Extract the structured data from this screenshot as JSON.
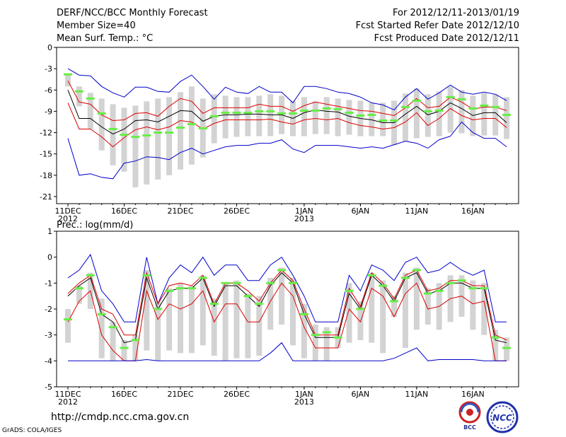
{
  "header": {
    "title": "DERF/NCC/BCC Monthly Forecast",
    "member_size": "Member Size=40",
    "variable": "Mean Surf. Temp.: °C",
    "period": "For 2012/12/11-2013/01/19",
    "fcst_started": "Fcst Started Refer Date 2012/12/10",
    "fcst_produced": "Fcst Produced Date 2012/12/11"
  },
  "footer": {
    "url": "http://cmdp.ncc.cma.gov.cn",
    "credit": "GrADS: COLA/IGES",
    "logo_bcc": "BCC",
    "logo_ncc": "NCC"
  },
  "colors": {
    "band_bar": "#d3d3d3",
    "median_marker": "#66ee44",
    "mean_line": "#000000",
    "inner_line": "#dd0000",
    "outer_line": "#0000cc"
  },
  "chart_data": [
    {
      "type": "line",
      "title": "Mean Surf. Temp.: °C",
      "ylabel": "°C",
      "ylim": [
        -22,
        0
      ],
      "yticks": [
        0,
        -3,
        -6,
        -9,
        -12,
        -15,
        -18,
        -21
      ],
      "xlim": [
        0,
        39
      ],
      "xticks": [
        {
          "x": 0,
          "label": "11DEC",
          "sub": "2012"
        },
        {
          "x": 5,
          "label": "16DEC",
          "sub": ""
        },
        {
          "x": 10,
          "label": "21DEC",
          "sub": ""
        },
        {
          "x": 15,
          "label": "26DEC",
          "sub": ""
        },
        {
          "x": 21,
          "label": "1JAN",
          "sub": "2013"
        },
        {
          "x": 26,
          "label": "6JAN",
          "sub": ""
        },
        {
          "x": 31,
          "label": "11JAN",
          "sub": ""
        },
        {
          "x": 36,
          "label": "16JAN",
          "sub": ""
        }
      ],
      "bar_top": [
        -3.8,
        -5.5,
        -6.4,
        -7.2,
        -8.0,
        -8.5,
        -8.2,
        -7.6,
        -7.2,
        -7.0,
        -6.3,
        -5.5,
        -7.2,
        -6.6,
        -6.8,
        -7.0,
        -7.0,
        -6.8,
        -6.6,
        -6.8,
        -7.5,
        -7.0,
        -7.6,
        -7.0,
        -7.2,
        -7.4,
        -7.5,
        -7.8,
        -7.8,
        -7.5,
        -6.5,
        -5.8,
        -6.6,
        -6.2,
        -5.5,
        -6.0,
        -6.8,
        -6.4,
        -6.6,
        -7.0
      ],
      "bar_bottom": [
        -5.5,
        -8.3,
        -11.5,
        -14.5,
        -16.6,
        -17.5,
        -19.7,
        -19.3,
        -18.6,
        -18.0,
        -17.2,
        -16.5,
        -15.5,
        -13.5,
        -12.8,
        -12.6,
        -12.5,
        -12.5,
        -12.5,
        -12.2,
        -12.5,
        -12.5,
        -12.2,
        -12.2,
        -12.5,
        -12.3,
        -12.5,
        -12.5,
        -12.5,
        -13.8,
        -13.2,
        -12.8,
        -12.6,
        -12.5,
        -12.0,
        -12.1,
        -12.5,
        -12.4,
        -12.4,
        -12.9
      ],
      "median": [
        -3.8,
        -6.2,
        -7.2,
        -9.3,
        -11.5,
        -12.3,
        -12.6,
        -12.4,
        -12.0,
        -12.0,
        -11.3,
        -10.8,
        -11.4,
        -9.7,
        -9.2,
        -9.2,
        -9.2,
        -9.0,
        -9.0,
        -9.3,
        -9.3,
        -8.9,
        -8.9,
        -8.6,
        -8.7,
        -9.2,
        -9.6,
        -9.5,
        -10.3,
        -10.3,
        -8.4,
        -7.5,
        -9.0,
        -8.9,
        -7.0,
        -7.3,
        -8.6,
        -8.2,
        -8.4,
        -9.5
      ],
      "series": [
        {
          "name": "max",
          "color": "#0000cc",
          "values": [
            -3.0,
            -3.9,
            -4.0,
            -5.5,
            -6.4,
            -7.0,
            -5.6,
            -5.6,
            -6.2,
            -6.3,
            -4.8,
            -3.9,
            -5.5,
            -7.3,
            -5.6,
            -6.3,
            -6.5,
            -5.5,
            -6.3,
            -6.3,
            -7.8,
            -5.5,
            -5.5,
            -5.8,
            -6.3,
            -6.5,
            -7.0,
            -7.8,
            -8.1,
            -8.8,
            -7.0,
            -5.8,
            -7.3,
            -6.4,
            -5.3,
            -6.3,
            -6.6,
            -6.3,
            -6.6,
            -7.5
          ]
        },
        {
          "name": "upper",
          "color": "#dd0000",
          "values": [
            -4.7,
            -7.7,
            -8.0,
            -9.5,
            -10.3,
            -10.2,
            -9.3,
            -9.2,
            -9.7,
            -8.3,
            -7.2,
            -7.6,
            -9.3,
            -8.5,
            -8.5,
            -8.5,
            -8.5,
            -8.0,
            -8.3,
            -8.3,
            -9.0,
            -8.2,
            -7.7,
            -8.0,
            -8.3,
            -8.6,
            -8.9,
            -9.0,
            -9.3,
            -9.6,
            -8.5,
            -7.2,
            -8.5,
            -8.3,
            -7.0,
            -7.7,
            -8.7,
            -8.4,
            -8.4,
            -8.9
          ]
        },
        {
          "name": "mean",
          "color": "#000000",
          "values": [
            -6.0,
            -10.0,
            -10.0,
            -11.2,
            -12.2,
            -11.5,
            -10.3,
            -10.2,
            -10.5,
            -9.7,
            -8.9,
            -9.0,
            -10.4,
            -9.7,
            -9.5,
            -9.5,
            -9.4,
            -9.4,
            -9.5,
            -9.5,
            -10.0,
            -9.2,
            -8.8,
            -9.0,
            -9.1,
            -9.7,
            -10.0,
            -10.2,
            -10.6,
            -10.6,
            -9.4,
            -8.3,
            -9.5,
            -9.0,
            -7.8,
            -8.6,
            -9.6,
            -9.2,
            -9.2,
            -10.6
          ]
        },
        {
          "name": "lower",
          "color": "#dd0000",
          "values": [
            -7.8,
            -11.5,
            -11.5,
            -12.6,
            -14.0,
            -12.7,
            -11.6,
            -11.2,
            -11.6,
            -11.2,
            -10.3,
            -10.5,
            -11.5,
            -10.7,
            -10.2,
            -10.2,
            -10.2,
            -10.2,
            -10.1,
            -10.5,
            -10.8,
            -10.2,
            -10.0,
            -10.2,
            -10.0,
            -10.6,
            -11.0,
            -11.2,
            -11.5,
            -11.3,
            -10.5,
            -9.2,
            -11.0,
            -10.0,
            -8.6,
            -9.6,
            -10.2,
            -10.0,
            -10.0,
            -11.3
          ]
        },
        {
          "name": "min",
          "color": "#0000cc",
          "values": [
            -12.8,
            -18.0,
            -17.8,
            -18.3,
            -18.5,
            -16.3,
            -16.0,
            -15.4,
            -15.5,
            -15.8,
            -14.8,
            -14.2,
            -15.0,
            -14.5,
            -14.0,
            -13.8,
            -13.8,
            -13.5,
            -13.5,
            -13.0,
            -14.3,
            -14.8,
            -13.8,
            -13.8,
            -13.8,
            -14.0,
            -14.2,
            -14.0,
            -14.2,
            -13.7,
            -13.2,
            -13.5,
            -14.2,
            -13.0,
            -12.5,
            -10.5,
            -12.0,
            -12.8,
            -12.8,
            -14.0
          ]
        }
      ]
    },
    {
      "type": "line",
      "title": "Prec.: log(mm/d)",
      "ylabel": "log(mm/d)",
      "ylim": [
        -5,
        1
      ],
      "yticks": [
        1,
        0,
        -1,
        -2,
        -3,
        -4,
        -5
      ],
      "xlim": [
        0,
        39
      ],
      "xticks": [
        {
          "x": 0,
          "label": "11DEC",
          "sub": "2012"
        },
        {
          "x": 5,
          "label": "16DEC",
          "sub": ""
        },
        {
          "x": 10,
          "label": "21DEC",
          "sub": ""
        },
        {
          "x": 15,
          "label": "26DEC",
          "sub": ""
        },
        {
          "x": 21,
          "label": "1JAN",
          "sub": "2013"
        },
        {
          "x": 26,
          "label": "6JAN",
          "sub": ""
        },
        {
          "x": 31,
          "label": "11JAN",
          "sub": ""
        },
        {
          "x": 36,
          "label": "16JAN",
          "sub": ""
        }
      ],
      "bar_top": [
        -2.0,
        -1.1,
        -0.6,
        -1.6,
        -2.5,
        -3.2,
        -3.0,
        -0.5,
        -1.7,
        -1.2,
        -1.0,
        -1.1,
        -0.7,
        -1.6,
        -1.0,
        -0.9,
        -1.4,
        -1.5,
        -0.8,
        -0.4,
        -0.8,
        -1.8,
        -2.6,
        -2.7,
        -2.7,
        -1.0,
        -1.7,
        -0.6,
        -0.9,
        -1.5,
        -0.6,
        -0.4,
        -1.2,
        -1.0,
        -0.7,
        -0.7,
        -0.9,
        -1.0,
        -2.8,
        -3.1
      ],
      "bar_bottom": [
        -3.3,
        -1.8,
        -2.0,
        -3.9,
        -4.0,
        -4.0,
        -4.0,
        -3.6,
        -4.0,
        -3.6,
        -3.7,
        -3.7,
        -3.4,
        -3.8,
        -4.0,
        -3.9,
        -3.9,
        -3.8,
        -2.8,
        -2.6,
        -3.4,
        -3.9,
        -4.0,
        -4.0,
        -3.5,
        -3.3,
        -3.2,
        -3.3,
        -3.7,
        -2.3,
        -3.5,
        -2.8,
        -2.6,
        -2.8,
        -2.5,
        -2.3,
        -2.8,
        -3.0,
        -4.0,
        -4.0
      ],
      "median": [
        -2.4,
        -1.2,
        -0.7,
        -2.2,
        -2.7,
        -3.5,
        -3.2,
        -0.7,
        -2.0,
        -1.3,
        -1.2,
        -1.2,
        -0.8,
        -1.8,
        -1.0,
        -1.0,
        -1.5,
        -1.8,
        -1.0,
        -0.5,
        -1.0,
        -2.2,
        -3.0,
        -2.9,
        -3.1,
        -1.3,
        -2.0,
        -0.7,
        -1.1,
        -1.7,
        -0.8,
        -0.5,
        -1.4,
        -1.3,
        -1.0,
        -0.9,
        -1.2,
        -1.2,
        -3.1,
        -3.5
      ],
      "series": [
        {
          "name": "max",
          "color": "#0000cc",
          "values": [
            -0.8,
            -0.5,
            0.1,
            -1.3,
            -1.8,
            -2.5,
            -2.5,
            0.0,
            -1.8,
            -0.8,
            -0.3,
            -0.6,
            0.0,
            -0.7,
            -0.3,
            -0.3,
            -0.9,
            -0.9,
            -0.3,
            0.0,
            -0.7,
            -1.5,
            -2.5,
            -2.5,
            -2.5,
            -0.7,
            -1.3,
            -0.3,
            -0.5,
            -0.9,
            -0.2,
            0.0,
            -0.6,
            -0.5,
            -0.2,
            -0.5,
            -0.7,
            -0.5,
            -2.5,
            -2.5
          ]
        },
        {
          "name": "upper",
          "color": "#dd0000",
          "values": [
            -1.4,
            -1.0,
            -0.7,
            -2.0,
            -2.2,
            -3.0,
            -3.0,
            -0.6,
            -1.8,
            -1.1,
            -1.0,
            -1.1,
            -0.7,
            -1.8,
            -1.0,
            -1.0,
            -1.3,
            -1.7,
            -1.0,
            -0.5,
            -0.9,
            -2.0,
            -3.0,
            -3.0,
            -3.0,
            -1.2,
            -1.9,
            -0.6,
            -1.0,
            -1.6,
            -0.7,
            -0.5,
            -1.3,
            -1.2,
            -0.9,
            -0.9,
            -1.1,
            -1.1,
            -3.0,
            -3.2
          ]
        },
        {
          "name": "mean",
          "color": "#000000",
          "values": [
            -1.5,
            -1.1,
            -0.8,
            -2.2,
            -2.5,
            -3.3,
            -3.2,
            -0.8,
            -2.0,
            -1.3,
            -1.2,
            -1.2,
            -0.8,
            -1.9,
            -1.1,
            -1.1,
            -1.5,
            -1.9,
            -1.1,
            -0.6,
            -1.0,
            -2.2,
            -3.1,
            -3.1,
            -3.1,
            -1.4,
            -2.0,
            -0.7,
            -1.1,
            -1.7,
            -0.8,
            -0.6,
            -1.4,
            -1.3,
            -1.0,
            -1.0,
            -1.2,
            -1.2,
            -3.2,
            -3.3
          ]
        },
        {
          "name": "lower",
          "color": "#dd0000",
          "values": [
            -2.5,
            -1.7,
            -1.3,
            -3.0,
            -3.6,
            -4.0,
            -4.0,
            -1.3,
            -2.4,
            -1.8,
            -2.0,
            -1.8,
            -1.3,
            -2.5,
            -1.8,
            -1.8,
            -2.5,
            -2.5,
            -1.7,
            -1.0,
            -1.5,
            -2.7,
            -3.5,
            -3.5,
            -3.5,
            -2.0,
            -2.5,
            -1.2,
            -1.5,
            -2.3,
            -1.4,
            -1.0,
            -2.0,
            -1.9,
            -1.6,
            -1.5,
            -1.8,
            -1.7,
            -4.0,
            -4.0
          ]
        },
        {
          "name": "min",
          "color": "#0000cc",
          "values": [
            -4.0,
            -4.0,
            -4.0,
            -4.0,
            -4.0,
            -4.0,
            -4.0,
            -3.95,
            -4.0,
            -4.0,
            -4.0,
            -4.0,
            -4.0,
            -4.0,
            -4.0,
            -4.0,
            -4.0,
            -4.0,
            -3.7,
            -3.3,
            -4.0,
            -4.0,
            -4.0,
            -4.0,
            -4.0,
            -4.0,
            -4.0,
            -4.0,
            -4.0,
            -3.9,
            -3.7,
            -3.5,
            -4.0,
            -3.95,
            -3.95,
            -3.95,
            -3.95,
            -4.0,
            -4.0,
            -4.0
          ]
        }
      ]
    }
  ]
}
